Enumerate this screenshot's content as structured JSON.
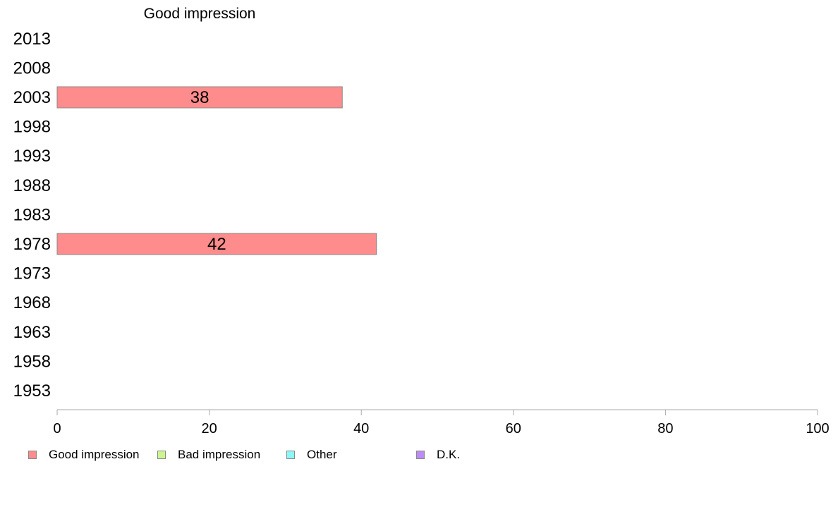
{
  "chart_data": {
    "type": "bar",
    "orientation": "horizontal",
    "title": "Good impression",
    "categories": [
      "2013",
      "2008",
      "2003",
      "1998",
      "1993",
      "1988",
      "1983",
      "1978",
      "1973",
      "1968",
      "1963",
      "1958",
      "1953"
    ],
    "series": [
      {
        "name": "Good impression",
        "values": [
          null,
          null,
          37.5,
          null,
          null,
          null,
          null,
          42,
          null,
          null,
          null,
          null,
          null
        ],
        "data_labels": [
          "",
          "",
          "38",
          "",
          "",
          "",
          "",
          "42",
          "",
          "",
          "",
          "",
          ""
        ]
      }
    ],
    "xlim": [
      0,
      100
    ],
    "xticks": [
      0,
      20,
      40,
      60,
      80,
      100
    ],
    "grid": false,
    "legend_position": "bottom-left",
    "legend": [
      {
        "label": "Good impression",
        "color": "#ff8c8c"
      },
      {
        "label": "Bad impression",
        "color": "#ccf590"
      },
      {
        "label": "Other",
        "color": "#8cf7f7"
      },
      {
        "label": "D.K.",
        "color": "#bb8cf7"
      }
    ]
  }
}
